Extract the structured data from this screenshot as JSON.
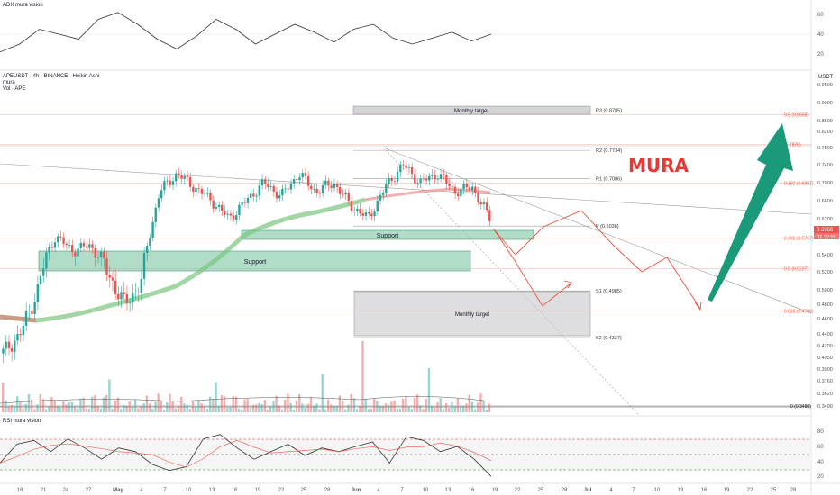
{
  "header": {
    "adx_title": "ADX mura vision",
    "symbol_line": "APEUSDT · 4h · BINANCE · Heikin Ashi",
    "indicator1": "mura",
    "indicator2": "Vol · APE",
    "rsi_title": "RSI mura vision",
    "currency": "USDT",
    "brand": "MURA"
  },
  "colors": {
    "up": "#26a69a",
    "down": "#ef5350",
    "brand": "#e53935",
    "arrow_green": "#1b9a7a",
    "path_red": "#e5533d",
    "support_fill": "#7cc4a4",
    "target_fill": "#c8c8cc"
  },
  "chart_data": [
    {
      "type": "line",
      "name": "ADX mura vision",
      "x": [
        0,
        1,
        2,
        3,
        4,
        5,
        6,
        7,
        8,
        9,
        10,
        11,
        12,
        13,
        14,
        15,
        16,
        17,
        18,
        19,
        20,
        21,
        22,
        23,
        24,
        25
      ],
      "values": [
        22,
        30,
        45,
        40,
        35,
        55,
        62,
        50,
        35,
        25,
        38,
        55,
        45,
        30,
        40,
        50,
        42,
        32,
        45,
        50,
        36,
        30,
        36,
        42,
        33,
        40
      ],
      "ytick_labels": [
        "60",
        "40",
        "20"
      ]
    },
    {
      "type": "candlestick",
      "name": "APEUSDT 4h Heikin Ashi",
      "x_ticks": [
        "18",
        "21",
        "24",
        "27",
        "May",
        "4",
        "7",
        "10",
        "13",
        "16",
        "19",
        "22",
        "25",
        "28",
        "Jun",
        "4",
        "7",
        "10",
        "13",
        "16",
        "19",
        "22",
        "25",
        "28",
        "Jul",
        "4",
        "7",
        "10",
        "13",
        "16",
        "19",
        "22",
        "25",
        "28"
      ],
      "y_ticks": [
        "0.9500",
        "0.9000",
        "0.8500",
        "0.8200",
        "0.7800",
        "0.7400",
        "0.7000",
        "0.6600",
        "0.6200",
        "0.5800",
        "0.5400",
        "0.5200",
        "0.5000",
        "0.4800",
        "0.4600",
        "0.4400",
        "0.4200",
        "0.4050",
        "0.3900",
        "0.3760",
        "0.3620",
        "0.3490"
      ],
      "last_price": "0.6066",
      "countdown": "02:12:59",
      "closes_wave": [
        0.41,
        0.44,
        0.5,
        0.58,
        0.55,
        0.56,
        0.52,
        0.48,
        0.51,
        0.68,
        0.72,
        0.69,
        0.66,
        0.62,
        0.66,
        0.7,
        0.67,
        0.72,
        0.68,
        0.7,
        0.65,
        0.62,
        0.69,
        0.74,
        0.7,
        0.72,
        0.68,
        0.69,
        0.62
      ],
      "levels": [
        {
          "label": "R3 (0.8785)",
          "value": 0.8785
        },
        {
          "label": "R2 (0.7734)",
          "value": 0.7734
        },
        {
          "label": "R1 (0.7086)",
          "value": 0.7086
        },
        {
          "label": "P (0.6036)",
          "value": 0.6036
        },
        {
          "label": "S1 (0.4985)",
          "value": 0.4985
        },
        {
          "label": "S2 (0.4337)",
          "value": 0.4337
        }
      ],
      "fib_levels": [
        {
          "label": "0.5 (0.8658)",
          "value": 0.8658
        },
        {
          "label": "(0.7876)",
          "value": 0.7876
        },
        {
          "label": "0.382 (0.6987)",
          "value": 0.6987
        },
        {
          "label": "0.382 (0.5767)",
          "value": 0.5767
        },
        {
          "label": "0.5 (0.5237)",
          "value": 0.5237
        },
        {
          "label": "0.618 (0.4706)",
          "value": 0.4706
        },
        {
          "label": "0 (0.3480)",
          "value": 0.348
        }
      ],
      "zones": [
        {
          "label": "Monthly target",
          "kind": "target",
          "from": 0.872,
          "to": 0.887
        },
        {
          "label": "Support",
          "kind": "support",
          "from": 0.596,
          "to": 0.609
        },
        {
          "label": "Support",
          "kind": "support",
          "from": 0.536,
          "to": 0.574
        },
        {
          "label": "Monthly target",
          "kind": "target",
          "from": 0.4337,
          "to": 0.4985
        }
      ]
    },
    {
      "type": "line",
      "name": "RSI mura vision",
      "x": [
        0,
        1,
        2,
        3,
        4,
        5,
        6,
        7,
        8,
        9,
        10,
        11,
        12,
        13,
        14,
        15,
        16,
        17,
        18,
        19,
        20,
        21,
        22,
        23,
        24,
        25,
        26,
        27,
        28,
        29
      ],
      "values": [
        40,
        65,
        70,
        55,
        72,
        60,
        45,
        60,
        55,
        38,
        30,
        35,
        72,
        78,
        60,
        45,
        55,
        65,
        50,
        60,
        55,
        62,
        68,
        40,
        75,
        70,
        55,
        62,
        45,
        22
      ],
      "ytick_labels": [
        "80",
        "60",
        "40",
        "20"
      ]
    }
  ]
}
